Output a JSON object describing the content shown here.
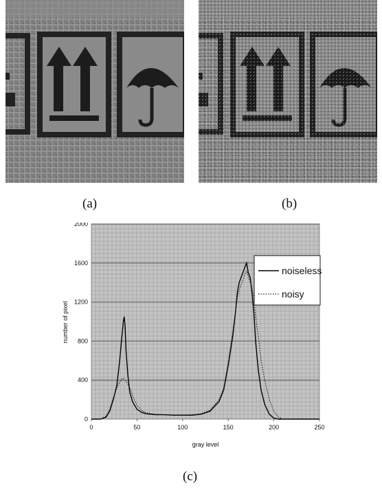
{
  "figure": {
    "captions": {
      "a": "(a)",
      "b": "(b)",
      "c": "(c)"
    },
    "photos": [
      {
        "panel": "a",
        "content": "grayscale photo of shipping-box handling symbols: this-way-up arrows and umbrella (keep dry)",
        "variant": "noiseless"
      },
      {
        "panel": "b",
        "content": "same grayscale photo with added noise",
        "variant": "noisy"
      }
    ]
  },
  "chart_data": {
    "type": "line",
    "title": "",
    "xlabel": "gray level",
    "ylabel": "number of pixel",
    "xlim": [
      0,
      250
    ],
    "ylim": [
      0,
      2000
    ],
    "xticks": [
      0,
      50,
      100,
      150,
      200,
      250
    ],
    "yticks": [
      0,
      400,
      800,
      1200,
      1600,
      2000
    ],
    "grid": true,
    "legend_position": "top-right",
    "series": [
      {
        "name": "noiseless",
        "style": "solid",
        "color": "#000000",
        "x": [
          0,
          10,
          16,
          20,
          24,
          28,
          31,
          33,
          35,
          36,
          37,
          38,
          40,
          42,
          45,
          50,
          55,
          60,
          70,
          80,
          90,
          100,
          110,
          120,
          130,
          140,
          145,
          150,
          155,
          158,
          160,
          162,
          164,
          166,
          168,
          170,
          172,
          174,
          176,
          178,
          180,
          183,
          186,
          190,
          195,
          200,
          205,
          210,
          250
        ],
        "y": [
          0,
          0,
          20,
          80,
          200,
          350,
          600,
          800,
          1000,
          1050,
          950,
          700,
          450,
          280,
          180,
          100,
          70,
          55,
          45,
          45,
          40,
          40,
          40,
          50,
          80,
          180,
          300,
          550,
          850,
          1100,
          1300,
          1400,
          1450,
          1500,
          1550,
          1600,
          1500,
          1450,
          1300,
          1100,
          800,
          500,
          300,
          150,
          50,
          10,
          0,
          0,
          0
        ]
      },
      {
        "name": "noisy",
        "style": "dotted",
        "color": "#222222",
        "x": [
          0,
          10,
          16,
          20,
          24,
          28,
          31,
          34,
          37,
          40,
          43,
          46,
          50,
          55,
          60,
          70,
          80,
          90,
          100,
          110,
          120,
          130,
          140,
          145,
          150,
          155,
          158,
          160,
          163,
          166,
          168,
          170,
          172,
          175,
          178,
          180,
          183,
          186,
          190,
          195,
          200,
          205,
          210,
          250
        ],
        "y": [
          0,
          0,
          30,
          100,
          220,
          320,
          380,
          420,
          400,
          360,
          300,
          220,
          140,
          90,
          65,
          50,
          45,
          42,
          42,
          45,
          55,
          90,
          200,
          320,
          580,
          900,
          1100,
          1250,
          1350,
          1420,
          1480,
          1520,
          1460,
          1380,
          1250,
          1050,
          850,
          600,
          400,
          200,
          80,
          20,
          0,
          0
        ]
      }
    ]
  }
}
